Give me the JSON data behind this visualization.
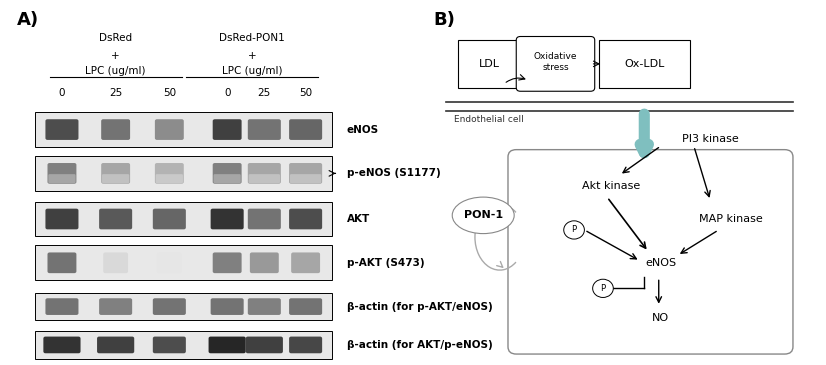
{
  "panel_A_label": "A)",
  "panel_B_label": "B)",
  "group1_label": "DsRed\n+\nLPC (ug/ml)",
  "group2_label": "DsRed-PON1\n+\nLPC (ug/ml)",
  "concentrations": [
    "0",
    "25",
    "50",
    "0",
    "25",
    "50"
  ],
  "band_labels": [
    "eNOS",
    "p-eNOS (S1177)",
    "AKT",
    "p-AKT (S473)",
    "β-actin (for p-AKT/eNOS)",
    "β-actin (for AKT/p-eNOS)"
  ],
  "arrow_label": "→p-eNOS (S1177)",
  "ldl_label": "LDL",
  "oxidative_stress_label": "Oxidative\nstress",
  "oxldl_label": "Ox-LDL",
  "endothelial_label": "Endothelial cell",
  "pi3k_label": "PI3 kinase",
  "akt_kinase_label": "Akt kinase",
  "map_kinase_label": "MAP kinase",
  "enos_label": "eNOS",
  "no_label": "NO",
  "pon1_label": "PON-1",
  "p_label": "P",
  "background_color": "#ffffff",
  "band_color_light": "#cccccc",
  "band_color_dark": "#555555",
  "band_color_mid": "#999999",
  "arrow_color": "#7fbfbf",
  "box_color": "#aaaaaa",
  "cell_box_color": "#999999"
}
